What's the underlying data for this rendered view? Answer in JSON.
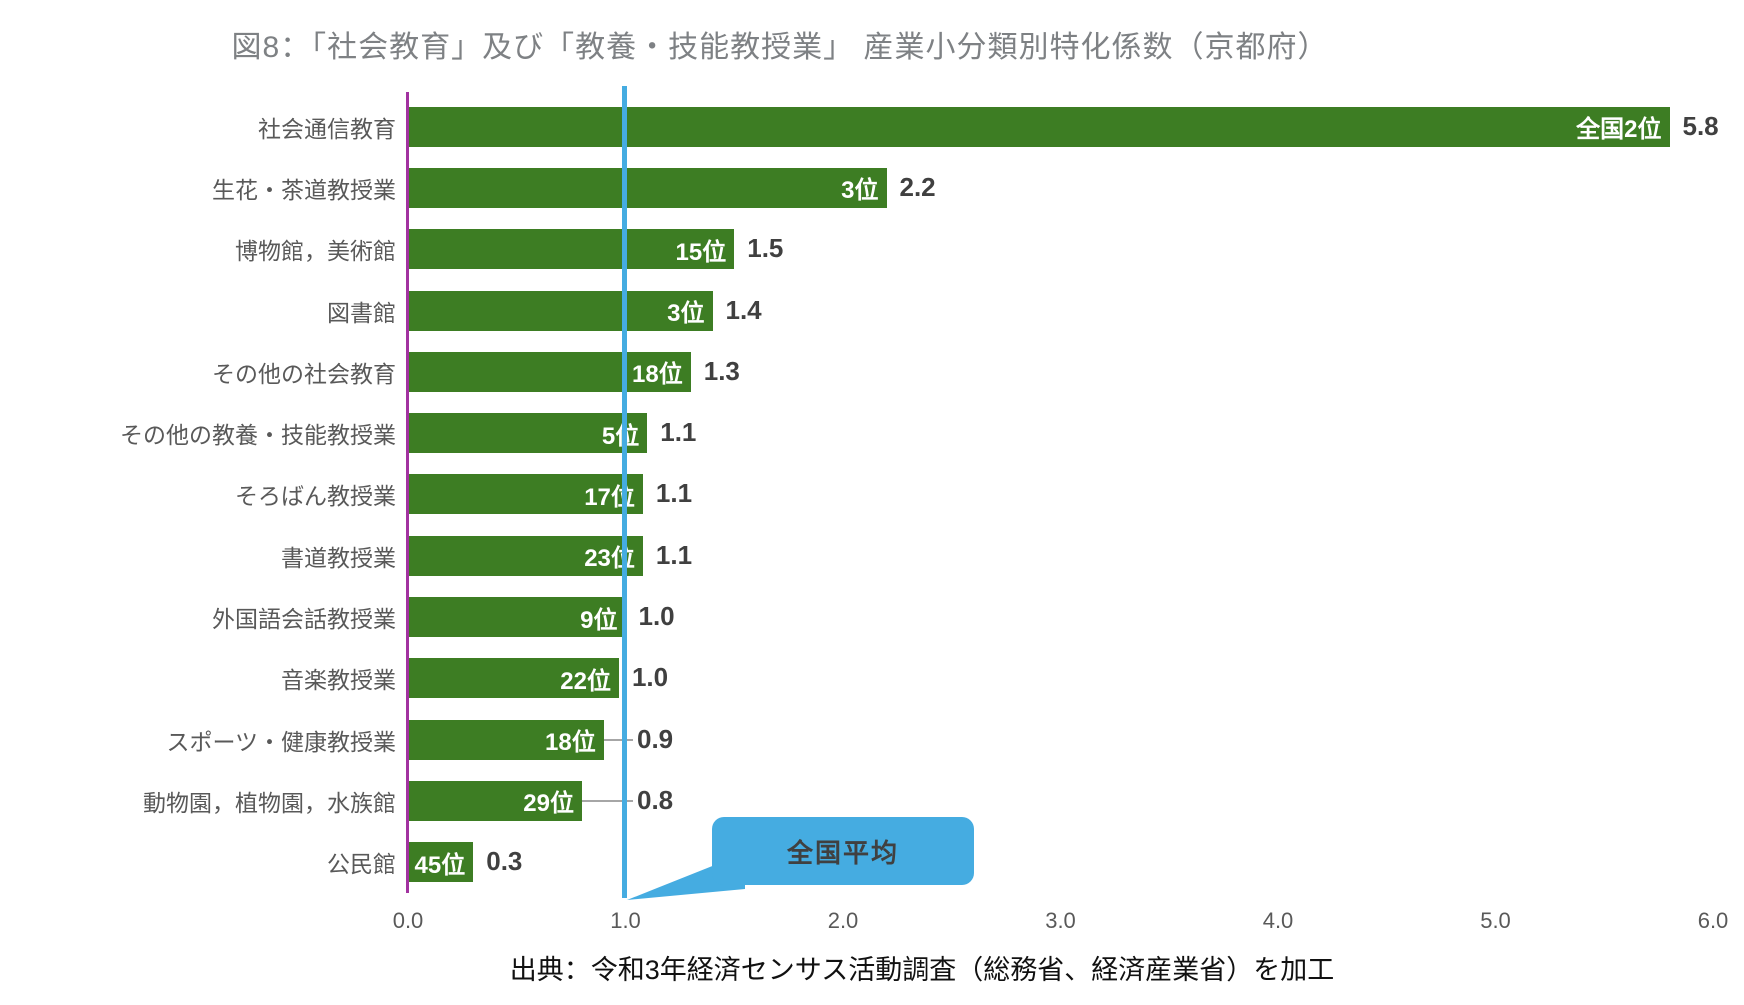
{
  "title": "図8：「社会教育」及び「教養・技能教授業」 産業小分類別特化係数（京都府）",
  "source": "出典：令和3年経済センサス活動調査（総務省、経済産業省）を加工",
  "callout": {
    "label": "全国平均"
  },
  "colors": {
    "bar": "#3D7D23",
    "zero_axis_line": "#A232A0",
    "average_line": "#45ACE1",
    "callout_bg": "#45ACE1",
    "category_text": "#595959",
    "value_text": "#404040",
    "rank_text": "#FFFFFF",
    "leader_line": "#A6A6A6",
    "title_text": "#7E8184"
  },
  "chart_data": {
    "type": "bar",
    "orientation": "horizontal",
    "title": "図8：「社会教育」及び「教養・技能教授業」 産業小分類別特化係数（京都府）",
    "xlabel": "",
    "ylabel": "",
    "xlim": [
      0.0,
      6.0
    ],
    "x_ticks": [
      "0.0",
      "1.0",
      "2.0",
      "3.0",
      "4.0",
      "5.0",
      "6.0"
    ],
    "grid": false,
    "reference_line": {
      "value": 1.0,
      "label": "全国平均"
    },
    "categories": [
      "社会通信教育",
      "生花・茶道教授業",
      "博物館，美術館",
      "図書館",
      "その他の社会教育",
      "その他の教養・技能教授業",
      "そろばん教授業",
      "書道教授業",
      "外国語会話教授業",
      "音楽教授業",
      "スポーツ・健康教授業",
      "動物園，植物園，水族館",
      "公民館"
    ],
    "values": [
      5.8,
      2.2,
      1.5,
      1.4,
      1.3,
      1.1,
      1.1,
      1.1,
      1.0,
      1.0,
      0.9,
      0.8,
      0.3
    ],
    "value_labels": [
      "5.8",
      "2.2",
      "1.5",
      "1.4",
      "1.3",
      "1.1",
      "1.1",
      "1.1",
      "1.0",
      "1.0",
      "0.9",
      "0.8",
      "0.3"
    ],
    "ranks": [
      "全国2位",
      "3位",
      "15位",
      "3位",
      "18位",
      "5位",
      "17位",
      "23位",
      "9位",
      "22位",
      "18位",
      "29位",
      "45位"
    ],
    "bar_lengths": [
      5.8,
      2.2,
      1.5,
      1.4,
      1.3,
      1.1,
      1.08,
      1.08,
      1.0,
      0.97,
      0.9,
      0.8,
      0.3
    ],
    "leader_line_rows": [
      10,
      11
    ]
  }
}
